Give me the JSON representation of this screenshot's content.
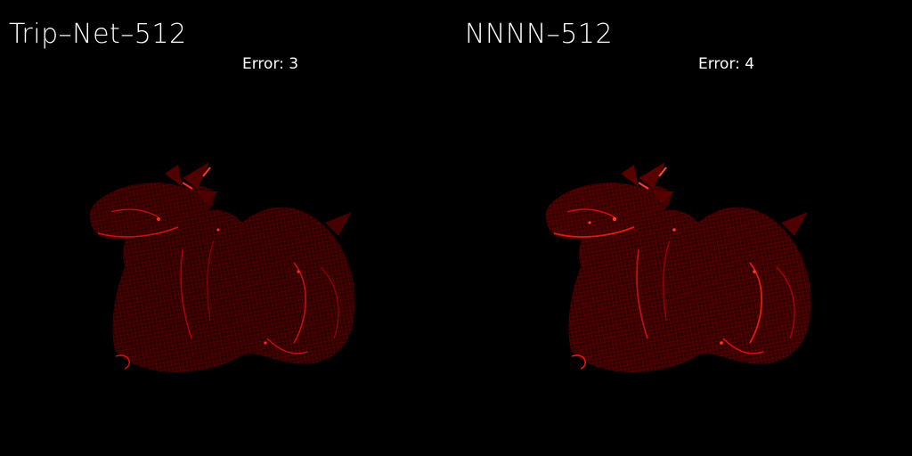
{
  "panels": [
    {
      "title": "Trip–Net–512",
      "error_label": "Error:",
      "error_value": "3"
    },
    {
      "title": "NNNN–512",
      "error_label": "Error:",
      "error_value": "4"
    }
  ],
  "colors": {
    "background": "#000000",
    "text": "#ffffff",
    "heatmap_dark": "#3a0000",
    "heatmap_mid": "#8a0000",
    "heatmap_bright": "#ff2a1a"
  }
}
